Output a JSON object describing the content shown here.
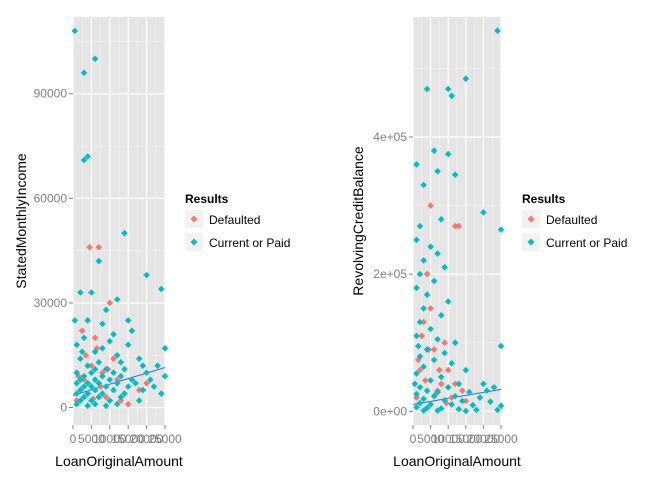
{
  "colors": {
    "panel_bg": "#e5e5e5",
    "grid_major": "#ffffff",
    "grid_minor": "#f2f2f2",
    "defaulted": "#f8766d",
    "current": "#00bfc4",
    "smooth_line": "#3366ff",
    "legend_key_bg": "#f2f2f2"
  },
  "chart_data": [
    {
      "type": "scatter",
      "xlabel": "LoanOriginalAmount",
      "ylabel": "StatedMonthlyIncome",
      "xlim": [
        0,
        25000
      ],
      "ylim": [
        -5000,
        112000
      ],
      "x_ticks": [
        0,
        5000,
        10000,
        15000,
        20000,
        25000
      ],
      "x_tick_labels": [
        "0",
        "5000",
        "10000",
        "15000",
        "20000",
        "25000"
      ],
      "y_ticks": [
        0,
        30000,
        60000,
        90000
      ],
      "y_tick_labels": [
        "0",
        "30000",
        "60000",
        "90000"
      ],
      "legend": {
        "title": "Results",
        "placement": "right",
        "entries": [
          {
            "label": "Defaulted",
            "series": "defaulted"
          },
          {
            "label": "Current or Paid",
            "series": "current"
          }
        ]
      },
      "trend_line": {
        "x": [
          0,
          25000
        ],
        "y": [
          3500,
          11500
        ]
      },
      "series": [
        {
          "name": "Defaulted",
          "key": "defaulted",
          "points": [
            [
              1000,
              2000
            ],
            [
              2000,
              5000
            ],
            [
              3000,
              8000
            ],
            [
              4000,
              4000
            ],
            [
              5000,
              12000
            ],
            [
              6000,
              20000
            ],
            [
              4500,
              46000
            ],
            [
              7000,
              46000
            ],
            [
              3500,
              15000
            ],
            [
              8000,
              10000
            ],
            [
              9000,
              3000
            ],
            [
              10000,
              30000
            ],
            [
              12000,
              8000
            ],
            [
              15000,
              1000
            ],
            [
              2500,
              22000
            ],
            [
              7500,
              6000
            ],
            [
              5500,
              2500
            ],
            [
              11000,
              14000
            ],
            [
              14000,
              4000
            ],
            [
              20000,
              7000
            ],
            [
              1500,
              9000
            ],
            [
              6500,
              17000
            ],
            [
              9500,
              11000
            ],
            [
              13000,
              2000
            ],
            [
              18000,
              5000
            ]
          ]
        },
        {
          "name": "Current or Paid",
          "key": "current",
          "points": [
            [
              500,
              108000
            ],
            [
              3000,
              96000
            ],
            [
              6000,
              100000
            ],
            [
              3000,
              71000
            ],
            [
              4000,
              72000
            ],
            [
              14000,
              50000
            ],
            [
              7000,
              42000
            ],
            [
              5000,
              33000
            ],
            [
              2000,
              33000
            ],
            [
              20000,
              38000
            ],
            [
              24000,
              34000
            ],
            [
              12000,
              31000
            ],
            [
              9000,
              28000
            ],
            [
              4000,
              25000
            ],
            [
              8000,
              24000
            ],
            [
              16000,
              22000
            ],
            [
              3000,
              20000
            ],
            [
              10000,
              19000
            ],
            [
              1000,
              18000
            ],
            [
              15000,
              18000
            ],
            [
              25000,
              17000
            ],
            [
              6000,
              16000
            ],
            [
              12000,
              15000
            ],
            [
              18000,
              14000
            ],
            [
              2000,
              14000
            ],
            [
              7000,
              13000
            ],
            [
              23000,
              12000
            ],
            [
              4000,
              12000
            ],
            [
              9000,
              11000
            ],
            [
              14000,
              11000
            ],
            [
              1000,
              10000
            ],
            [
              5000,
              10000
            ],
            [
              11000,
              10000
            ],
            [
              20000,
              10000
            ],
            [
              3000,
              9000
            ],
            [
              8000,
              9000
            ],
            [
              13000,
              9000
            ],
            [
              25000,
              9000
            ],
            [
              2000,
              8000
            ],
            [
              6000,
              8000
            ],
            [
              10000,
              8000
            ],
            [
              16000,
              8000
            ],
            [
              21000,
              8000
            ],
            [
              1000,
              7000
            ],
            [
              4000,
              7000
            ],
            [
              7000,
              7000
            ],
            [
              12000,
              7000
            ],
            [
              17000,
              7000
            ],
            [
              3000,
              6000
            ],
            [
              5000,
              6000
            ],
            [
              9000,
              6000
            ],
            [
              15000,
              6000
            ],
            [
              22000,
              6000
            ],
            [
              2000,
              5000
            ],
            [
              6000,
              5000
            ],
            [
              11000,
              5000
            ],
            [
              19000,
              5000
            ],
            [
              1000,
              4000
            ],
            [
              4000,
              4000
            ],
            [
              8000,
              4000
            ],
            [
              14000,
              4000
            ],
            [
              24000,
              4000
            ],
            [
              3000,
              3000
            ],
            [
              7000,
              3000
            ],
            [
              13000,
              3000
            ],
            [
              2000,
              2000
            ],
            [
              5000,
              2000
            ],
            [
              10000,
              2000
            ],
            [
              18000,
              2000
            ],
            [
              1000,
              1000
            ],
            [
              6000,
              1000
            ],
            [
              12000,
              1000
            ],
            [
              4000,
              500
            ],
            [
              9000,
              500
            ],
            [
              500,
              25000
            ],
            [
              2500,
              16000
            ],
            [
              11000,
              21000
            ],
            [
              15000,
              25000
            ],
            [
              19000,
              12000
            ],
            [
              8000,
              17000
            ],
            [
              13000,
              13000
            ],
            [
              6000,
              11000
            ]
          ]
        }
      ]
    },
    {
      "type": "scatter",
      "xlabel": "LoanOriginalAmount",
      "ylabel": "RevolvingCreditBalance",
      "xlim": [
        0,
        25000
      ],
      "ylim": [
        -20000,
        575000
      ],
      "x_ticks": [
        0,
        5000,
        10000,
        15000,
        20000,
        25000
      ],
      "x_tick_labels": [
        "0",
        "5000",
        "10000",
        "15000",
        "20000",
        "25000"
      ],
      "y_ticks": [
        0,
        200000,
        400000
      ],
      "y_tick_labels": [
        "0e+00",
        "2e+05",
        "4e+05"
      ],
      "legend": {
        "title": "Results",
        "placement": "right",
        "entries": [
          {
            "label": "Defaulted",
            "series": "defaulted"
          },
          {
            "label": "Current or Paid",
            "series": "current"
          }
        ]
      },
      "trend_line": {
        "x": [
          0,
          25000
        ],
        "y": [
          10000,
          32000
        ]
      },
      "series": [
        {
          "name": "Defaulted",
          "key": "defaulted",
          "points": [
            [
              1000,
              20000
            ],
            [
              2000,
              60000
            ],
            [
              3000,
              130000
            ],
            [
              4000,
              200000
            ],
            [
              5000,
              150000
            ],
            [
              6000,
              90000
            ],
            [
              7000,
              30000
            ],
            [
              8000,
              40000
            ],
            [
              9000,
              100000
            ],
            [
              10000,
              60000
            ],
            [
              11000,
              20000
            ],
            [
              12000,
              270000
            ],
            [
              13000,
              270000
            ],
            [
              14000,
              30000
            ],
            [
              5000,
              300000
            ],
            [
              2500,
              110000
            ],
            [
              7500,
              60000
            ],
            [
              3500,
              45000
            ],
            [
              15000,
              15000
            ],
            [
              1500,
              75000
            ],
            [
              6500,
              25000
            ],
            [
              9500,
              12000
            ],
            [
              4500,
              90000
            ],
            [
              12000,
              40000
            ]
          ]
        },
        {
          "name": "Current or Paid",
          "key": "current",
          "points": [
            [
              24000,
              555000
            ],
            [
              15000,
              485000
            ],
            [
              4000,
              470000
            ],
            [
              10000,
              470000
            ],
            [
              11000,
              460000
            ],
            [
              6000,
              380000
            ],
            [
              10000,
              375000
            ],
            [
              1000,
              360000
            ],
            [
              7000,
              350000
            ],
            [
              12000,
              345000
            ],
            [
              3000,
              330000
            ],
            [
              20000,
              290000
            ],
            [
              8000,
              280000
            ],
            [
              2000,
              270000
            ],
            [
              25000,
              265000
            ],
            [
              1000,
              250000
            ],
            [
              5000,
              240000
            ],
            [
              7000,
              230000
            ],
            [
              3000,
              220000
            ],
            [
              9000,
              210000
            ],
            [
              2000,
              200000
            ],
            [
              6000,
              190000
            ],
            [
              1000,
              180000
            ],
            [
              4000,
              170000
            ],
            [
              10000,
              160000
            ],
            [
              3000,
              150000
            ],
            [
              8000,
              140000
            ],
            [
              2000,
              130000
            ],
            [
              5000,
              120000
            ],
            [
              1000,
              110000
            ],
            [
              7000,
              105000
            ],
            [
              12000,
              100000
            ],
            [
              25000,
              95000
            ],
            [
              4000,
              90000
            ],
            [
              9000,
              85000
            ],
            [
              2000,
              80000
            ],
            [
              6000,
              75000
            ],
            [
              11000,
              70000
            ],
            [
              3000,
              65000
            ],
            [
              15000,
              60000
            ],
            [
              1000,
              55000
            ],
            [
              8000,
              50000
            ],
            [
              5000,
              45000
            ],
            [
              13000,
              40000
            ],
            [
              20000,
              40000
            ],
            [
              2000,
              35000
            ],
            [
              10000,
              35000
            ],
            [
              23000,
              35000
            ],
            [
              4000,
              30000
            ],
            [
              7000,
              28000
            ],
            [
              16000,
              28000
            ],
            [
              1000,
              25000
            ],
            [
              6000,
              22000
            ],
            [
              12000,
              22000
            ],
            [
              19000,
              20000
            ],
            [
              3000,
              18000
            ],
            [
              9000,
              16000
            ],
            [
              14000,
              15000
            ],
            [
              22000,
              14000
            ],
            [
              2000,
              12000
            ],
            [
              5000,
              10000
            ],
            [
              11000,
              10000
            ],
            [
              17000,
              9000
            ],
            [
              25000,
              8000
            ],
            [
              1000,
              6000
            ],
            [
              4000,
              5000
            ],
            [
              8000,
              4000
            ],
            [
              13000,
              3000
            ],
            [
              18000,
              2000
            ],
            [
              24000,
              2000
            ],
            [
              3000,
              1000
            ],
            [
              7000,
              1000
            ],
            [
              15000,
              500
            ],
            [
              21000,
              30000
            ],
            [
              500,
              40000
            ],
            [
              1500,
              95000
            ]
          ]
        }
      ]
    }
  ]
}
